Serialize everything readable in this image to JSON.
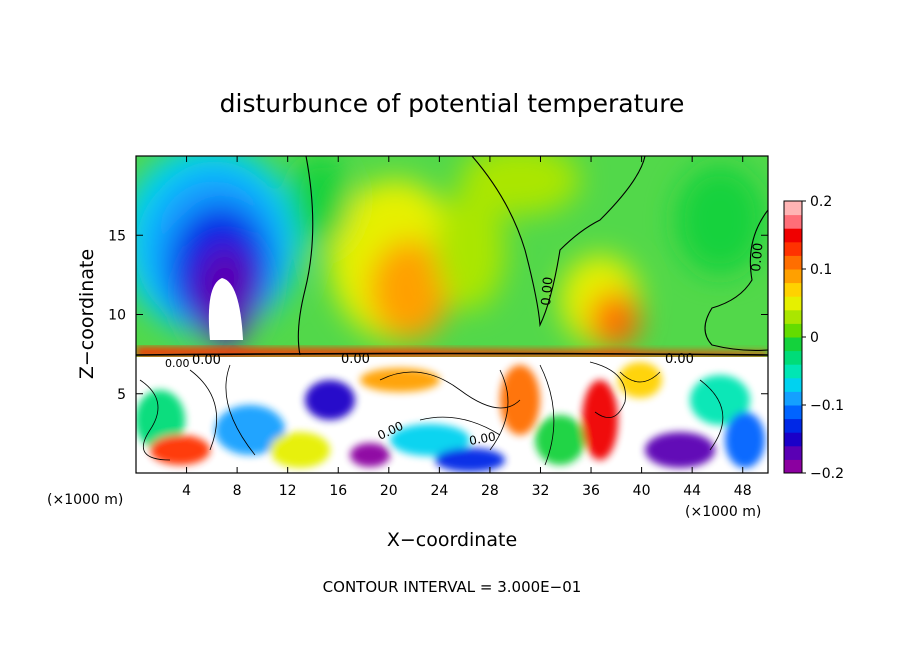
{
  "chart_data": {
    "type": "heatmap",
    "title": "disturbunce of potential temperature",
    "xlabel": "X−coordinate",
    "ylabel": "Z−coordinate",
    "x_unit_left": "(×1000 m)",
    "x_unit_right": "(×1000 m)",
    "xlim": [
      0,
      50
    ],
    "ylim": [
      0,
      20
    ],
    "x_ticks": [
      4,
      8,
      12,
      16,
      20,
      24,
      28,
      32,
      36,
      40,
      44,
      48
    ],
    "y_ticks": [
      5,
      10,
      15
    ],
    "colorbar": {
      "range": [
        -0.2,
        0.2
      ],
      "ticks": [
        {
          "value": 0.2,
          "label": "0.2"
        },
        {
          "value": 0.1,
          "label": "0.1"
        },
        {
          "value": 0,
          "label": "0"
        },
        {
          "value": -0.1,
          "label": "−0.1"
        },
        {
          "value": -0.2,
          "label": "−0.2"
        }
      ],
      "colors": [
        "#8b00a0",
        "#5a00b4",
        "#1a00c8",
        "#0028e6",
        "#0064ff",
        "#14a0ff",
        "#00d2f0",
        "#00e6b4",
        "#00dc78",
        "#14d23c",
        "#64dc00",
        "#aae600",
        "#e6f000",
        "#ffd200",
        "#ffa000",
        "#ff6e00",
        "#ff3200",
        "#f00000",
        "#ff6e78",
        "#ffb4b4"
      ]
    },
    "contour_interval_text": "CONTOUR INTERVAL = 3.000E−01",
    "contour_labels": [
      "0.00",
      "0.00",
      "0.00",
      "0.00",
      "0.00",
      "0.00",
      "0.00",
      "0.00"
    ]
  }
}
